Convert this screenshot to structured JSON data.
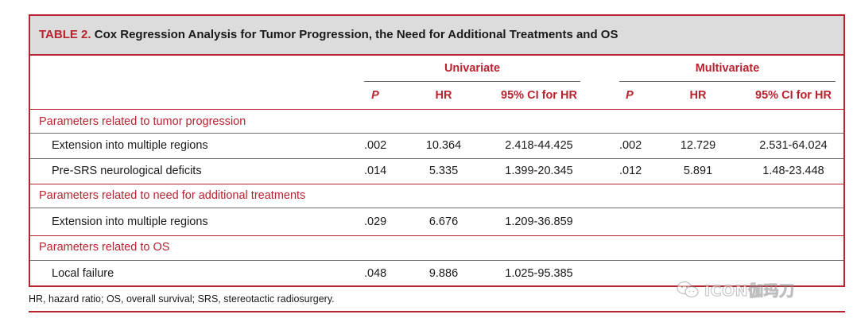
{
  "caption": {
    "label": "TABLE 2.",
    "title": "Cox Regression Analysis for Tumor Progression, the Need for Additional Treatments and OS"
  },
  "groups": {
    "univariate": "Univariate",
    "multivariate": "Multivariate"
  },
  "columns": {
    "p": "P",
    "hr": "HR",
    "ci": "95% CI for HR"
  },
  "sections": [
    {
      "title": "Parameters related to tumor progression",
      "rows": [
        {
          "label": "Extension into multiple regions",
          "u_p": ".002",
          "u_hr": "10.364",
          "u_ci": "2.418-44.425",
          "m_p": ".002",
          "m_hr": "12.729",
          "m_ci": "2.531-64.024"
        },
        {
          "label": "Pre-SRS neurological deficits",
          "u_p": ".014",
          "u_hr": "5.335",
          "u_ci": "1.399-20.345",
          "m_p": ".012",
          "m_hr": "5.891",
          "m_ci": "1.48-23.448"
        }
      ]
    },
    {
      "title": "Parameters related to need for additional treatments",
      "rows": [
        {
          "label": "Extension into multiple regions",
          "u_p": ".029",
          "u_hr": "6.676",
          "u_ci": "1.209-36.859",
          "m_p": "",
          "m_hr": "",
          "m_ci": ""
        }
      ]
    },
    {
      "title": "Parameters related to OS",
      "rows": [
        {
          "label": "Local failure",
          "u_p": ".048",
          "u_hr": "9.886",
          "u_ci": "1.025-95.385",
          "m_p": "",
          "m_hr": "",
          "m_ci": ""
        }
      ]
    }
  ],
  "footnote": "HR, hazard ratio; OS, overall survival; SRS, stereotactic radiosurgery.",
  "watermark": "ICON伽玛刀",
  "colors": {
    "accent": "#b8232f",
    "caption_bg": "#dcdcdc"
  }
}
